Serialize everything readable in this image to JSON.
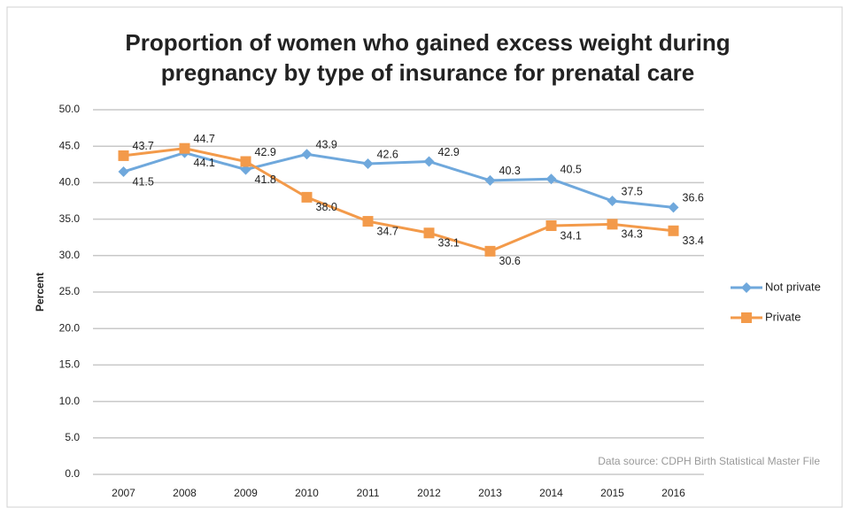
{
  "chart_data": {
    "type": "line",
    "title": [
      "Proportion of women who gained excess weight during",
      "pregnancy by type of insurance for prenatal care"
    ],
    "y_label": "Percent",
    "annotation": "Data source: CDPH Birth Statistical Master File",
    "categories": [
      "2007",
      "2008",
      "2009",
      "2010",
      "2011",
      "2012",
      "2013",
      "2014",
      "2015",
      "2016"
    ],
    "series": [
      {
        "name": "Not private",
        "color": "#6fa8dc",
        "marker": "diamond",
        "values": [
          41.5,
          44.1,
          41.8,
          43.9,
          42.6,
          42.9,
          40.3,
          40.5,
          37.5,
          36.6
        ],
        "value_labels": [
          "41.5",
          "44.1",
          "41.8",
          "43.9",
          "42.6",
          "42.9",
          "40.3",
          "40.5",
          "37.5",
          "36.6"
        ]
      },
      {
        "name": "Private",
        "color": "#f39a4a",
        "marker": "square",
        "values": [
          43.7,
          44.7,
          42.9,
          38.0,
          34.7,
          33.1,
          30.6,
          34.1,
          34.3,
          33.4
        ],
        "value_labels": [
          "43.7",
          "44.7",
          "42.9",
          "38.0",
          "34.7",
          "33.1",
          "30.6",
          "34.1",
          "34.3",
          "33.4"
        ]
      }
    ],
    "ylim": [
      0,
      50
    ],
    "yticks": [
      {
        "value": 0,
        "label": "0.0"
      },
      {
        "value": 5,
        "label": "5.0"
      },
      {
        "value": 10,
        "label": "10.0"
      },
      {
        "value": 15,
        "label": "15.0"
      },
      {
        "value": 20,
        "label": "20.0"
      },
      {
        "value": 25,
        "label": "25.0"
      },
      {
        "value": 30,
        "label": "30.0"
      },
      {
        "value": 35,
        "label": "35.0"
      },
      {
        "value": 40,
        "label": "40.0"
      },
      {
        "value": 45,
        "label": "45.0"
      },
      {
        "value": 50,
        "label": "50.0"
      }
    ],
    "grid": true,
    "legend": "right"
  }
}
